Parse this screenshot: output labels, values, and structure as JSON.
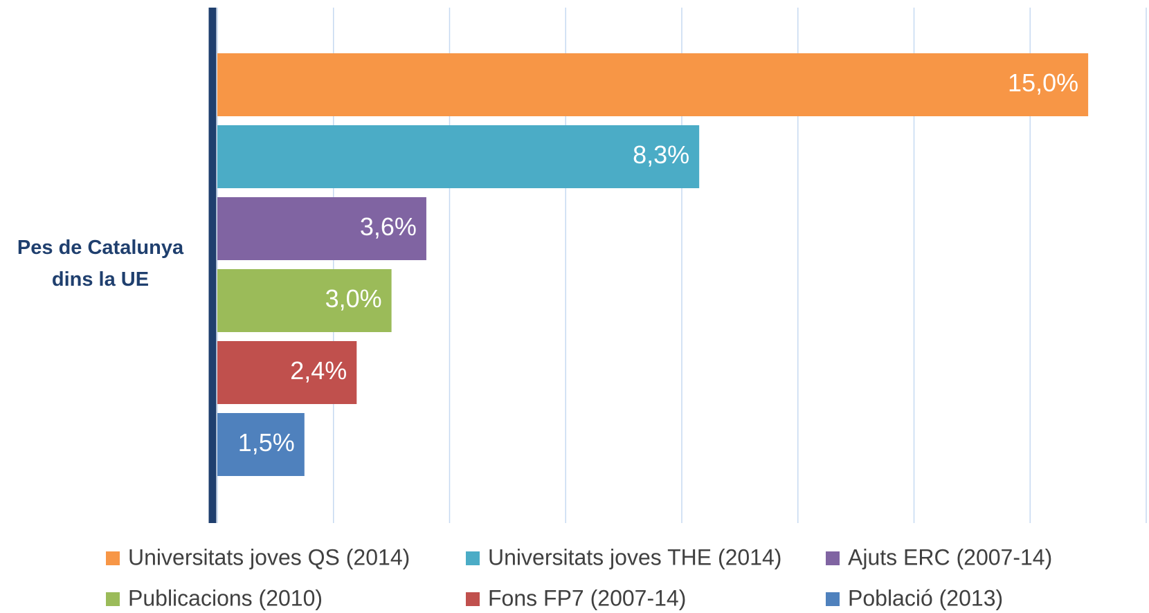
{
  "chart_data": {
    "type": "bar",
    "orientation": "horizontal",
    "categories": [
      "Pes de Catalunya dins la UE"
    ],
    "series": [
      {
        "name": "Universitats joves QS (2014)",
        "color": "#f79646",
        "values": [
          15.0
        ],
        "value_labels": [
          "15,0%"
        ]
      },
      {
        "name": "Universitats joves THE (2014)",
        "color": "#4bacc6",
        "values": [
          8.3
        ],
        "value_labels": [
          "8,3%"
        ]
      },
      {
        "name": "Ajuts ERC (2007-14)",
        "color": "#8064a2",
        "values": [
          3.6
        ],
        "value_labels": [
          "3,6%"
        ]
      },
      {
        "name": "Publicacions (2010)",
        "color": "#9bbb59",
        "values": [
          3.0
        ],
        "value_labels": [
          "3,0%"
        ]
      },
      {
        "name": "Fons FP7 (2007-14)",
        "color": "#c0504d",
        "values": [
          2.4
        ],
        "value_labels": [
          "2,4%"
        ]
      },
      {
        "name": "Població (2013)",
        "color": "#4f81bd",
        "values": [
          1.5
        ],
        "value_labels": [
          "1,5%"
        ]
      }
    ],
    "xlim": [
      0,
      16
    ],
    "xticks": [
      0,
      2,
      4,
      6,
      8,
      10,
      12,
      14,
      16
    ],
    "grid": true,
    "legend": "bottom"
  }
}
